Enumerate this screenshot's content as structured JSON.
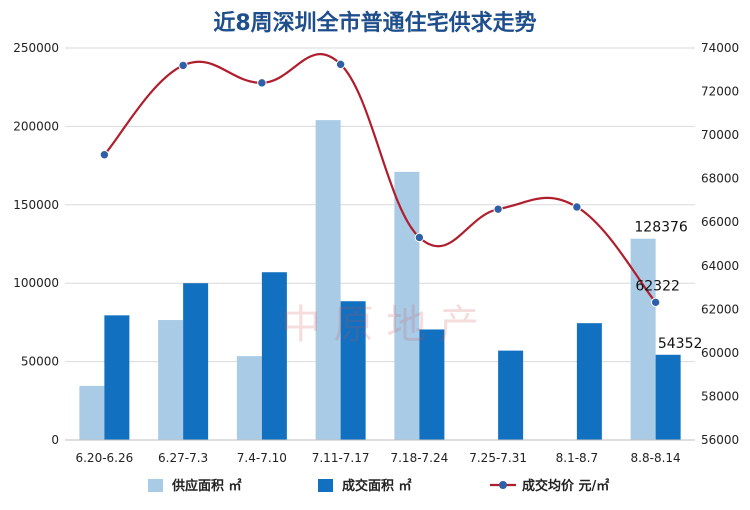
{
  "chart_data": {
    "type": "bar",
    "title": "近8周深圳全市普通住宅供求走势",
    "categories": [
      "6.20-6.26",
      "6.27-7.3",
      "7.4-7.10",
      "7.11-7.17",
      "7.18-7.24",
      "7.25-7.31",
      "8.1-8.7",
      "8.8-8.14"
    ],
    "series": [
      {
        "name": "供应面积 ㎡",
        "kind": "bar",
        "axis": "left",
        "color": "#a9cbe6",
        "values": [
          34500,
          76500,
          53500,
          204000,
          171000,
          0,
          0,
          128376
        ]
      },
      {
        "name": "成交面积 ㎡",
        "kind": "bar",
        "axis": "left",
        "color": "#1170c0",
        "values": [
          79500,
          100000,
          107000,
          88500,
          70500,
          57000,
          74500,
          54352
        ]
      },
      {
        "name": "成交均价 元/㎡",
        "kind": "line",
        "axis": "right",
        "color": "#b01e2e",
        "marker_color": "#2f5fa6",
        "values": [
          69100,
          73200,
          72400,
          73250,
          65300,
          66600,
          66700,
          62322
        ]
      }
    ],
    "ylim_left": [
      0,
      250000
    ],
    "yticks_left": [
      0,
      50000,
      100000,
      150000,
      200000,
      250000
    ],
    "ylim_right": [
      56000,
      74000
    ],
    "yticks_right": [
      56000,
      58000,
      60000,
      62000,
      64000,
      66000,
      68000,
      70000,
      72000,
      74000
    ],
    "data_labels": [
      {
        "series": 0,
        "index": 7,
        "text": "128376"
      },
      {
        "series": 2,
        "index": 7,
        "text": "62322"
      },
      {
        "series": 1,
        "index": 7,
        "text": "54352"
      }
    ],
    "legend": "bottom",
    "grid": true
  },
  "watermark": {
    "text": "中 原 地 产"
  }
}
